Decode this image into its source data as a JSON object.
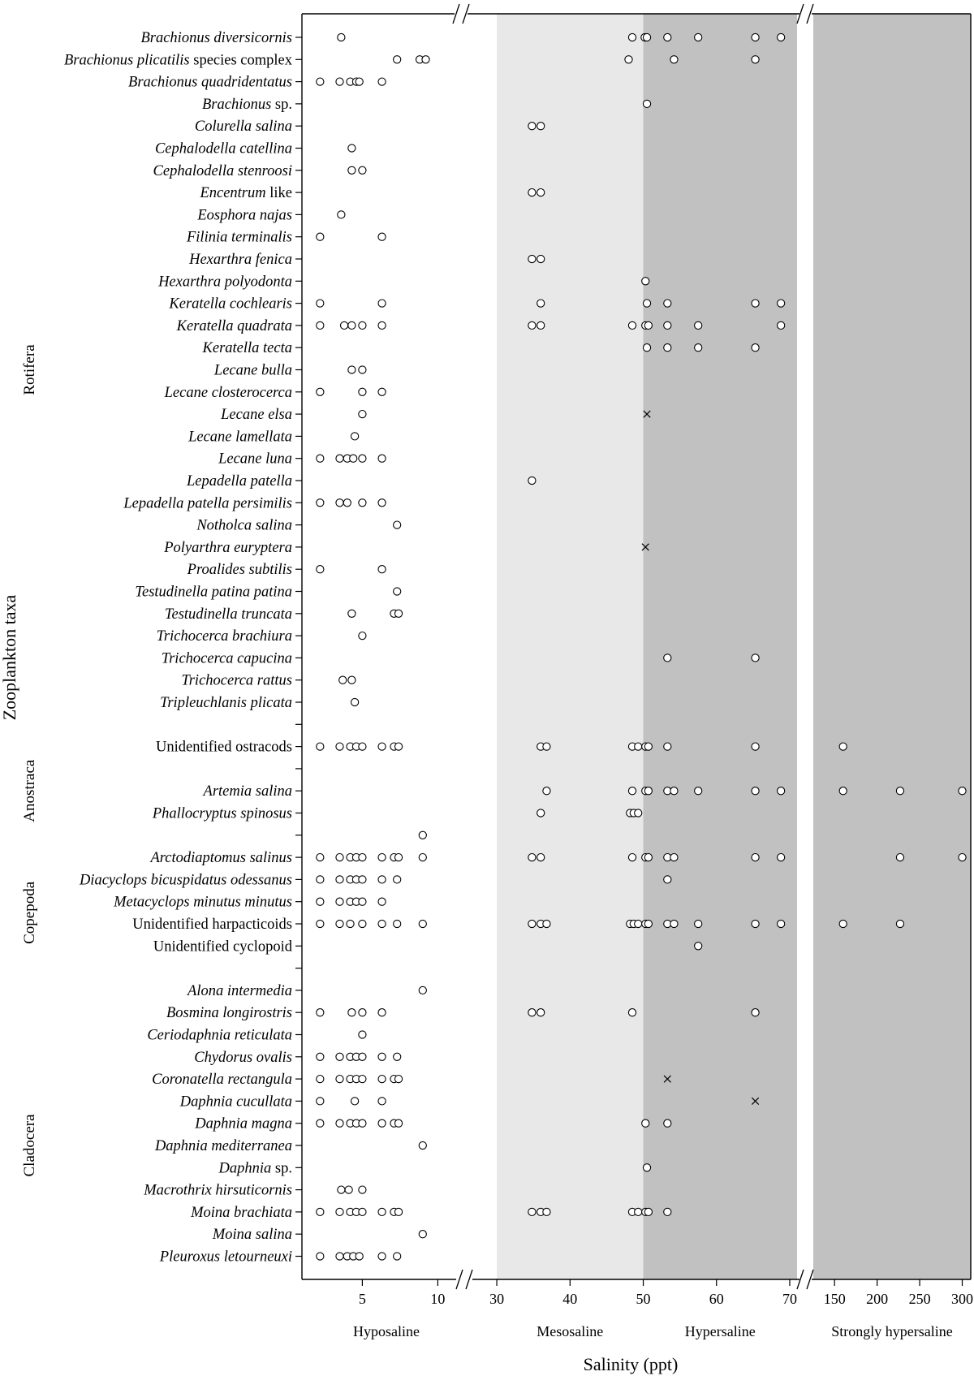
{
  "chart_data": {
    "type": "scatter",
    "xlabel": "Salinity (ppt)",
    "ylabel": "Zooplankton taxa",
    "x_axis_segments": [
      {
        "range": [
          1,
          11
        ],
        "ticks": [
          5,
          10
        ]
      },
      {
        "range": [
          27,
          71
        ],
        "ticks": [
          30,
          40,
          50,
          60,
          70
        ]
      },
      {
        "range": [
          125,
          310
        ],
        "ticks": [
          150,
          200,
          250,
          300
        ]
      }
    ],
    "x_axis_break": true,
    "zones": [
      {
        "name": "Hyposaline",
        "range": [
          1,
          30
        ],
        "color": "#ffffff"
      },
      {
        "name": "Mesosaline",
        "range": [
          30,
          50
        ],
        "color": "#e8e8e8"
      },
      {
        "name": "Hypersaline",
        "range": [
          50,
          71
        ],
        "color": "#c1c1c1"
      },
      {
        "name": "Strongly hypersaline",
        "range": [
          125,
          310
        ],
        "color": "#c1c1c1"
      }
    ],
    "groups": [
      {
        "name": "Rotifera",
        "rows": [
          0,
          30
        ]
      },
      {
        "name": "Anostraca",
        "rows": [
          32,
          36
        ]
      },
      {
        "name": "Copepoda",
        "rows": [
          37,
          42
        ]
      },
      {
        "name": "Cladocera",
        "rows": [
          44,
          56
        ]
      }
    ],
    "marker_legend": {
      "circle": "o",
      "cross": "×"
    },
    "taxa": [
      {
        "parts": [
          {
            "t": "Brachionus diversicornis",
            "i": true
          }
        ],
        "circles": [
          3.6,
          48.5,
          50.2,
          50.5,
          53.3,
          57.5,
          65.3,
          68.8
        ],
        "crosses": []
      },
      {
        "parts": [
          {
            "t": "Brachionus plicatilis",
            "i": true
          },
          {
            "t": " species complex",
            "i": false
          }
        ],
        "circles": [
          7.3,
          8.8,
          9.2,
          48.0,
          54.2,
          65.3
        ],
        "crosses": []
      },
      {
        "parts": [
          {
            "t": "Brachionus quadridentatus",
            "i": true
          }
        ],
        "circles": [
          2.2,
          3.5,
          4.2,
          4.6,
          4.8,
          6.3
        ],
        "crosses": []
      },
      {
        "parts": [
          {
            "t": "Brachionus",
            "i": true
          },
          {
            "t": " sp.",
            "i": false
          }
        ],
        "circles": [
          50.5
        ],
        "crosses": []
      },
      {
        "parts": [
          {
            "t": "Colurella salina",
            "i": true
          }
        ],
        "circles": [
          34.8,
          36.0
        ],
        "crosses": []
      },
      {
        "parts": [
          {
            "t": "Cephalodella catellina",
            "i": true
          }
        ],
        "circles": [
          4.3
        ],
        "crosses": []
      },
      {
        "parts": [
          {
            "t": "Cephalodella stenroosi",
            "i": true
          }
        ],
        "circles": [
          4.3,
          5.0
        ],
        "crosses": []
      },
      {
        "parts": [
          {
            "t": "Encentrum",
            "i": true
          },
          {
            "t": " like",
            "i": false
          }
        ],
        "circles": [
          34.8,
          36.0
        ],
        "crosses": []
      },
      {
        "parts": [
          {
            "t": "Eosphora najas",
            "i": true
          }
        ],
        "circles": [
          3.6
        ],
        "crosses": []
      },
      {
        "parts": [
          {
            "t": "Filinia terminalis",
            "i": true
          }
        ],
        "circles": [
          2.2,
          6.3
        ],
        "crosses": []
      },
      {
        "parts": [
          {
            "t": "Hexarthra fenica",
            "i": true
          }
        ],
        "circles": [
          34.8,
          36.0
        ],
        "crosses": []
      },
      {
        "parts": [
          {
            "t": "Hexarthra polyodonta",
            "i": true
          }
        ],
        "circles": [
          50.3
        ],
        "crosses": []
      },
      {
        "parts": [
          {
            "t": "Keratella cochlearis",
            "i": true
          }
        ],
        "circles": [
          2.2,
          6.3,
          36.0,
          50.5,
          53.3,
          65.3,
          68.8
        ],
        "crosses": []
      },
      {
        "parts": [
          {
            "t": "Keratella quadrata",
            "i": true
          }
        ],
        "circles": [
          2.2,
          3.8,
          4.3,
          5.0,
          6.3,
          34.8,
          36.0,
          48.5,
          50.3,
          50.7,
          53.3,
          57.5,
          68.8
        ],
        "crosses": []
      },
      {
        "parts": [
          {
            "t": "Keratella tecta",
            "i": true
          }
        ],
        "circles": [
          50.5,
          53.3,
          57.5,
          65.3
        ],
        "crosses": []
      },
      {
        "parts": [
          {
            "t": "Lecane bulla",
            "i": true
          }
        ],
        "circles": [
          4.3,
          5.0
        ],
        "crosses": []
      },
      {
        "parts": [
          {
            "t": "Lecane closterocerca",
            "i": true
          }
        ],
        "circles": [
          2.2,
          5.0,
          6.3
        ],
        "crosses": []
      },
      {
        "parts": [
          {
            "t": "Lecane elsa",
            "i": true
          }
        ],
        "circles": [
          5.0
        ],
        "crosses": [
          50.5
        ]
      },
      {
        "parts": [
          {
            "t": "Lecane lamellata",
            "i": true
          }
        ],
        "circles": [
          4.5
        ],
        "crosses": []
      },
      {
        "parts": [
          {
            "t": "Lecane luna",
            "i": true
          }
        ],
        "circles": [
          2.2,
          3.5,
          4.0,
          4.4,
          5.0,
          6.3
        ],
        "crosses": []
      },
      {
        "parts": [
          {
            "t": "Lepadella patella",
            "i": true
          }
        ],
        "circles": [
          34.8
        ],
        "crosses": []
      },
      {
        "parts": [
          {
            "t": "Lepadella patella persimilis",
            "i": true
          }
        ],
        "circles": [
          2.2,
          3.5,
          4.0,
          5.0,
          6.3
        ],
        "crosses": []
      },
      {
        "parts": [
          {
            "t": "Notholca salina",
            "i": true
          }
        ],
        "circles": [
          7.3
        ],
        "crosses": []
      },
      {
        "parts": [
          {
            "t": "Polyarthra euryptera",
            "i": true
          }
        ],
        "circles": [],
        "crosses": [
          50.3
        ]
      },
      {
        "parts": [
          {
            "t": "Proalides subtilis",
            "i": true
          }
        ],
        "circles": [
          2.2,
          6.3
        ],
        "crosses": []
      },
      {
        "parts": [
          {
            "t": "Testudinella patina patina",
            "i": true
          }
        ],
        "circles": [
          7.3
        ],
        "crosses": []
      },
      {
        "parts": [
          {
            "t": "Testudinella truncata",
            "i": true
          }
        ],
        "circles": [
          4.3,
          7.1,
          7.4
        ],
        "crosses": []
      },
      {
        "parts": [
          {
            "t": "Trichocerca brachiura",
            "i": true
          }
        ],
        "circles": [
          5.0
        ],
        "crosses": []
      },
      {
        "parts": [
          {
            "t": "Trichocerca capucina",
            "i": true
          }
        ],
        "circles": [
          53.3,
          65.3
        ],
        "crosses": []
      },
      {
        "parts": [
          {
            "t": "Trichocerca rattus",
            "i": true
          }
        ],
        "circles": [
          3.7,
          4.3
        ],
        "crosses": []
      },
      {
        "parts": [
          {
            "t": "Tripleuchlanis plicata",
            "i": true
          }
        ],
        "circles": [
          4.5
        ],
        "crosses": []
      },
      {
        "parts": [],
        "circles": [],
        "crosses": []
      },
      {
        "parts": [
          {
            "t": "Unidentified ostracods",
            "i": false
          }
        ],
        "circles": [
          2.2,
          3.5,
          4.2,
          4.6,
          5.0,
          6.3,
          7.1,
          7.4,
          36.0,
          36.8,
          48.5,
          49.3,
          50.3,
          50.7,
          53.3,
          65.3,
          160
        ],
        "crosses": []
      },
      {
        "parts": [],
        "circles": [],
        "crosses": []
      },
      {
        "parts": [
          {
            "t": "Artemia salina",
            "i": true
          }
        ],
        "circles": [
          36.8,
          48.5,
          50.3,
          50.7,
          53.3,
          54.2,
          57.5,
          65.3,
          68.8,
          160,
          227,
          300
        ],
        "crosses": []
      },
      {
        "parts": [
          {
            "t": "Phallocryptus spinosus",
            "i": true
          }
        ],
        "circles": [
          36.0,
          48.2,
          48.7,
          49.3
        ],
        "crosses": []
      },
      {
        "parts": [],
        "circles": [
          9.0
        ],
        "crosses": []
      },
      {
        "parts": [
          {
            "t": "Arctodiaptomus salinus",
            "i": true
          }
        ],
        "circles": [
          2.2,
          3.5,
          4.2,
          4.6,
          5.0,
          6.3,
          7.1,
          7.4,
          9.0,
          34.8,
          36.0,
          48.5,
          50.3,
          50.7,
          53.3,
          54.2,
          65.3,
          68.8,
          227,
          300
        ],
        "crosses": []
      },
      {
        "parts": [
          {
            "t": "Diacyclops bicuspidatus odessanus",
            "i": true
          }
        ],
        "circles": [
          2.2,
          3.5,
          4.2,
          4.6,
          5.0,
          6.3,
          7.3,
          53.3
        ],
        "crosses": []
      },
      {
        "parts": [
          {
            "t": "Metacyclops minutus minutus",
            "i": true
          }
        ],
        "circles": [
          2.2,
          3.5,
          4.2,
          4.6,
          5.0,
          6.3
        ],
        "crosses": []
      },
      {
        "parts": [
          {
            "t": "Unidentified harpacticoids",
            "i": false
          }
        ],
        "circles": [
          2.2,
          3.5,
          4.2,
          5.0,
          6.3,
          7.3,
          9.0,
          34.8,
          36.0,
          36.8,
          48.2,
          48.7,
          49.3,
          50.3,
          50.7,
          53.3,
          54.2,
          57.5,
          65.3,
          68.8,
          160,
          227
        ],
        "crosses": []
      },
      {
        "parts": [
          {
            "t": "Unidentified cyclopoid",
            "i": false
          }
        ],
        "circles": [
          57.5
        ],
        "crosses": []
      },
      {
        "parts": [],
        "circles": [],
        "crosses": []
      },
      {
        "parts": [
          {
            "t": "Alona intermedia",
            "i": true
          }
        ],
        "circles": [
          9.0
        ],
        "crosses": []
      },
      {
        "parts": [
          {
            "t": "Bosmina longirostris",
            "i": true
          }
        ],
        "circles": [
          2.2,
          4.3,
          5.0,
          6.3,
          34.8,
          36.0,
          48.5,
          65.3
        ],
        "crosses": []
      },
      {
        "parts": [
          {
            "t": "Ceriodaphnia reticulata",
            "i": true
          }
        ],
        "circles": [
          5.0
        ],
        "crosses": []
      },
      {
        "parts": [
          {
            "t": "Chydorus ovalis",
            "i": true
          }
        ],
        "circles": [
          2.2,
          3.5,
          4.2,
          4.6,
          5.0,
          6.3,
          7.3
        ],
        "crosses": []
      },
      {
        "parts": [
          {
            "t": "Coronatella rectangula",
            "i": true
          }
        ],
        "circles": [
          2.2,
          3.5,
          4.2,
          4.6,
          5.0,
          6.3,
          7.1,
          7.4
        ],
        "crosses": [
          53.3
        ]
      },
      {
        "parts": [
          {
            "t": "Daphnia cucullata",
            "i": true
          }
        ],
        "circles": [
          2.2,
          4.5,
          6.3
        ],
        "crosses": [
          65.3
        ]
      },
      {
        "parts": [
          {
            "t": "Daphnia magna",
            "i": true
          }
        ],
        "circles": [
          2.2,
          3.5,
          4.2,
          4.6,
          5.0,
          6.3,
          7.1,
          7.4,
          50.3,
          53.3
        ],
        "crosses": []
      },
      {
        "parts": [
          {
            "t": "Daphnia mediterranea",
            "i": true
          }
        ],
        "circles": [
          9.0
        ],
        "crosses": []
      },
      {
        "parts": [
          {
            "t": "Daphnia",
            "i": true
          },
          {
            "t": " sp.",
            "i": false
          }
        ],
        "circles": [
          50.5
        ],
        "crosses": []
      },
      {
        "parts": [
          {
            "t": "Macrothrix hirsuticornis",
            "i": true
          }
        ],
        "circles": [
          3.6,
          4.1,
          5.0
        ],
        "crosses": []
      },
      {
        "parts": [
          {
            "t": "Moina brachiata",
            "i": true
          }
        ],
        "circles": [
          2.2,
          3.5,
          4.2,
          4.6,
          5.0,
          6.3,
          7.1,
          7.4,
          34.8,
          36.0,
          36.8,
          48.5,
          49.3,
          50.3,
          50.7,
          53.3
        ],
        "crosses": []
      },
      {
        "parts": [
          {
            "t": "Moina salina",
            "i": true
          }
        ],
        "circles": [
          9.0
        ],
        "crosses": []
      },
      {
        "parts": [
          {
            "t": "Pleuroxus letourneuxi",
            "i": true
          }
        ],
        "circles": [
          2.2,
          3.5,
          4.0,
          4.4,
          4.8,
          6.3,
          7.3
        ],
        "crosses": []
      }
    ]
  }
}
